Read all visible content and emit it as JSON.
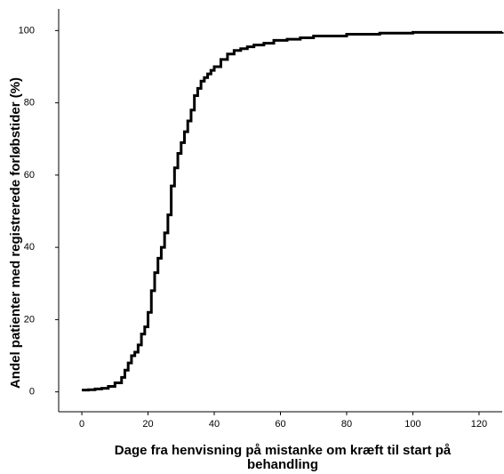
{
  "chart_data": {
    "type": "step",
    "ylabel": "Andel patienter med registrerede forløbstider (%)",
    "xlabel": [
      "Dage fra henvisning på mistanke om kræft til start på",
      "behandling"
    ],
    "x": [
      0,
      2,
      4,
      6,
      8,
      10,
      12,
      13,
      14,
      15,
      16,
      17,
      18,
      19,
      20,
      21,
      22,
      23,
      24,
      25,
      26,
      27,
      28,
      29,
      30,
      31,
      32,
      33,
      34,
      35,
      36,
      37,
      38,
      39,
      40,
      42,
      44,
      46,
      48,
      50,
      52,
      55,
      58,
      62,
      66,
      70,
      80,
      90,
      100,
      127
    ],
    "series": [
      {
        "color": "#000000",
        "values": [
          0.5,
          0.6,
          0.8,
          1,
          1.5,
          2.5,
          4,
          6,
          8,
          10,
          11,
          13,
          16,
          18,
          22,
          28,
          33,
          37,
          40,
          44,
          49,
          57,
          62,
          66,
          69,
          72,
          75,
          78,
          82,
          84,
          86,
          87,
          88,
          89,
          90,
          92,
          93.5,
          94.5,
          95,
          95.5,
          96,
          96.5,
          97.3,
          97.6,
          98,
          98.5,
          99,
          99.3,
          99.5,
          99.6
        ]
      }
    ],
    "xlim": [
      -7,
      127
    ],
    "ylim": [
      -5.5,
      106
    ],
    "xticks": [
      0,
      20,
      40,
      60,
      80,
      100,
      120
    ],
    "yticks": [
      0,
      20,
      40,
      60,
      80,
      100
    ]
  }
}
